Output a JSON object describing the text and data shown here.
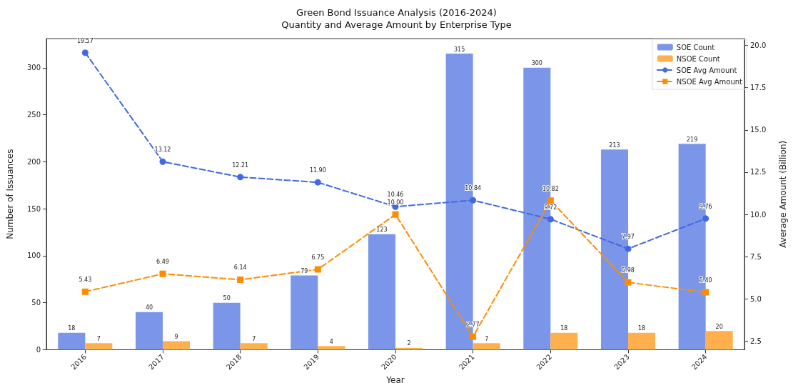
{
  "chart_data": {
    "type": "bar",
    "title": "Green Bond Issuance Analysis (2016-2024)",
    "subtitle": "Quantity and Average Amount by Enterprise Type",
    "xlabel": "Year",
    "ylabel": "Number of Issuances",
    "y2label": "Average Amount (Billion)",
    "categories": [
      "2016",
      "2017",
      "2018",
      "2019",
      "2020",
      "2021",
      "2022",
      "2023",
      "2024"
    ],
    "series": [
      {
        "name": "SOE Count",
        "type": "bar",
        "color": "#7b96e8",
        "values": [
          18,
          40,
          50,
          79,
          123,
          315,
          300,
          213,
          219
        ]
      },
      {
        "name": "NSOE Count",
        "type": "bar",
        "color": "#ffb04d",
        "values": [
          7,
          9,
          7,
          4,
          2,
          7,
          18,
          18,
          20
        ]
      },
      {
        "name": "SOE Avg Amount",
        "type": "line",
        "axis": "y2",
        "color": "#4169e1",
        "marker": "circle",
        "line_style": "dashed",
        "values": [
          19.57,
          13.12,
          12.21,
          11.9,
          10.46,
          10.84,
          9.72,
          7.97,
          9.76
        ],
        "value_labels": [
          "19.57",
          "13.12",
          "12.21",
          "11.90",
          "10.46",
          "10.84",
          "9.72",
          "7.97",
          "9.76"
        ]
      },
      {
        "name": "NSOE Avg Amount",
        "type": "line",
        "axis": "y2",
        "color": "#ff8c00",
        "marker": "square",
        "line_style": "dashed",
        "values": [
          5.43,
          6.49,
          6.14,
          6.75,
          10.0,
          2.77,
          10.82,
          5.98,
          5.4
        ],
        "value_labels": [
          "5.43",
          "6.49",
          "6.14",
          "6.75",
          "10.00",
          "2.77",
          "10.82",
          "5.98",
          "5.40"
        ]
      }
    ],
    "ylim": [
      0,
      331
    ],
    "yticks": [
      0,
      50,
      100,
      150,
      200,
      250,
      300
    ],
    "y2lim": [
      2.0,
      20.4
    ],
    "y2ticks": [
      {
        "value": 2.5,
        "label": "2.5"
      },
      {
        "value": 5,
        "label": "5.0"
      },
      {
        "value": 7.5,
        "label": "7.5"
      },
      {
        "value": 10,
        "label": "10.0"
      },
      {
        "value": 12.5,
        "label": "12.5"
      },
      {
        "value": 15,
        "label": "15.0"
      },
      {
        "value": 17.5,
        "label": "17.5"
      },
      {
        "value": 20,
        "label": "20.0"
      }
    ],
    "data_labels": true,
    "legend": "top right",
    "grid": false
  }
}
